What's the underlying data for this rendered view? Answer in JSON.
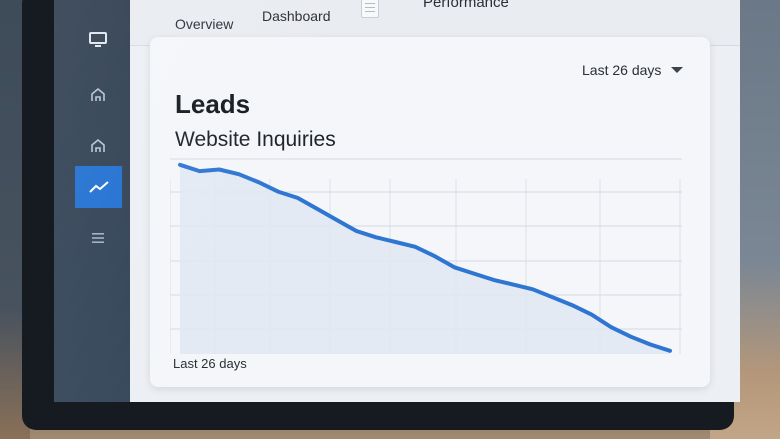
{
  "tabs": [
    {
      "label": "Overview"
    },
    {
      "label": "Dashboard"
    },
    {
      "label": "Performance"
    }
  ],
  "sidebar": {
    "items": [
      {
        "icon": "monitor-icon"
      },
      {
        "icon": "home-icon"
      },
      {
        "icon": "home-icon"
      },
      {
        "icon": "trend-icon",
        "active": true
      },
      {
        "icon": "menu-icon"
      }
    ]
  },
  "card": {
    "title": "Leads",
    "subtitle": "Website Inquiries",
    "range_select": "Last 26 days",
    "footer_label": "Last 26 days"
  },
  "colors": {
    "accent": "#1f6fd1",
    "line": "#2f76d2",
    "sidebar": "#2f3f52"
  },
  "chart_data": {
    "type": "area",
    "title": "",
    "xlabel": "",
    "ylabel": "",
    "x": [
      0,
      1,
      2,
      3,
      4,
      5,
      6,
      7,
      8,
      9,
      10,
      11,
      12,
      13,
      14,
      15,
      16,
      17,
      18,
      19,
      20,
      21,
      22,
      23,
      24,
      25
    ],
    "series": [
      {
        "values": [
          100,
          96,
          97,
          94,
          89,
          83,
          79,
          72,
          65,
          58,
          54,
          51,
          48,
          42,
          35,
          31,
          27,
          24,
          21,
          16,
          11,
          5,
          -3,
          -9,
          -14,
          -18
        ]
      }
    ],
    "ylim": [
      -20,
      110
    ],
    "grid": true,
    "legend": "none"
  }
}
